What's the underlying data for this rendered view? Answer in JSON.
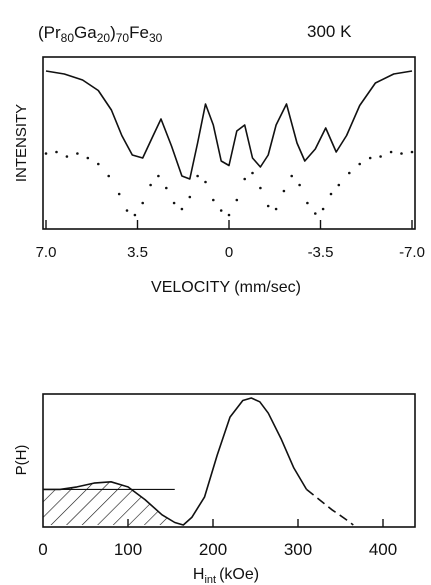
{
  "header": {
    "sample_base": "(Pr",
    "sample_sub1": "80",
    "sample_mid": "Ga",
    "sample_sub2": "20",
    "sample_close": ")",
    "sample_sub3": "70",
    "sample_fe": "Fe",
    "sample_sub4": "30",
    "temperature": "300 K"
  },
  "chart_data": [
    {
      "type": "line",
      "title": "",
      "ylabel": "INTENSITY",
      "xlabel": "VELOCITY   (mm/sec)",
      "xlim": [
        7.0,
        -7.0
      ],
      "x_reversed": true,
      "ytick_labels_shown": false,
      "xticks": [
        7.0,
        3.5,
        0,
        -3.5,
        -7.0
      ],
      "xtick_labels": [
        "7.0",
        "3.5",
        "0",
        "-3.5",
        "-7.0"
      ],
      "series": [
        {
          "style": "solid",
          "x": [
            7.0,
            6.3,
            5.6,
            5.0,
            4.5,
            4.1,
            3.7,
            3.3,
            2.9,
            2.6,
            2.2,
            1.8,
            1.5,
            1.2,
            0.9,
            0.6,
            0.3,
            0.0,
            -0.3,
            -0.6,
            -0.9,
            -1.2,
            -1.5,
            -1.8,
            -2.2,
            -2.6,
            -2.9,
            -3.3,
            -3.7,
            -4.1,
            -4.5,
            -5.0,
            -5.6,
            -6.3,
            -7.0
          ],
          "y": [
            0.98,
            0.96,
            0.92,
            0.85,
            0.72,
            0.55,
            0.42,
            0.4,
            0.55,
            0.66,
            0.48,
            0.28,
            0.26,
            0.5,
            0.76,
            0.62,
            0.38,
            0.35,
            0.58,
            0.62,
            0.4,
            0.34,
            0.42,
            0.62,
            0.76,
            0.5,
            0.38,
            0.46,
            0.6,
            0.44,
            0.55,
            0.75,
            0.9,
            0.96,
            0.98
          ]
        },
        {
          "style": "dotted",
          "x": [
            7.0,
            6.6,
            6.2,
            5.8,
            5.4,
            5.0,
            4.6,
            4.2,
            3.9,
            3.6,
            3.3,
            3.0,
            2.7,
            2.4,
            2.1,
            1.8,
            1.5,
            1.2,
            0.9,
            0.6,
            0.3,
            0.0,
            -0.3,
            -0.6,
            -0.9,
            -1.2,
            -1.5,
            -1.8,
            -2.1,
            -2.4,
            -2.7,
            -3.0,
            -3.3,
            -3.6,
            -3.9,
            -4.2,
            -4.6,
            -5.0,
            -5.4,
            -5.8,
            -6.2,
            -6.6,
            -7.0
          ],
          "y": [
            0.43,
            0.44,
            0.41,
            0.43,
            0.4,
            0.36,
            0.28,
            0.16,
            0.05,
            0.02,
            0.1,
            0.22,
            0.28,
            0.2,
            0.1,
            0.06,
            0.14,
            0.28,
            0.24,
            0.12,
            0.05,
            0.02,
            0.12,
            0.26,
            0.3,
            0.2,
            0.08,
            0.06,
            0.18,
            0.28,
            0.22,
            0.1,
            0.03,
            0.06,
            0.16,
            0.22,
            0.3,
            0.36,
            0.4,
            0.41,
            0.44,
            0.43,
            0.44
          ]
        }
      ]
    },
    {
      "type": "line",
      "title": "",
      "ylabel": "P(H)",
      "xlabel_main": "H",
      "xlabel_sub": "int",
      "xlabel_unit": "(kOe)",
      "xlim": [
        0,
        430
      ],
      "xticks": [
        0,
        100,
        200,
        300,
        400
      ],
      "xtick_labels": [
        "0",
        "100",
        "200",
        "300",
        "400"
      ],
      "ytick_labels_shown": false,
      "series": [
        {
          "style": "solid",
          "x": [
            0,
            20,
            40,
            60,
            80,
            100,
            120,
            140,
            155,
            165,
            175,
            190,
            205,
            220,
            235,
            245,
            255,
            265,
            280,
            295,
            310
          ],
          "y": [
            0.28,
            0.28,
            0.3,
            0.33,
            0.34,
            0.3,
            0.2,
            0.08,
            0.02,
            0.0,
            0.06,
            0.22,
            0.55,
            0.85,
            0.98,
            1.0,
            0.97,
            0.88,
            0.68,
            0.45,
            0.28
          ]
        },
        {
          "style": "dashed",
          "x": [
            310,
            325,
            340,
            355,
            365
          ],
          "y": [
            0.28,
            0.2,
            0.12,
            0.05,
            0.0
          ]
        },
        {
          "style": "hatched-region",
          "x": [
            0,
            20,
            40,
            60,
            80,
            100,
            120,
            140,
            155
          ],
          "y": [
            0.28,
            0.28,
            0.3,
            0.33,
            0.34,
            0.3,
            0.2,
            0.08,
            0.02
          ]
        }
      ]
    }
  ]
}
